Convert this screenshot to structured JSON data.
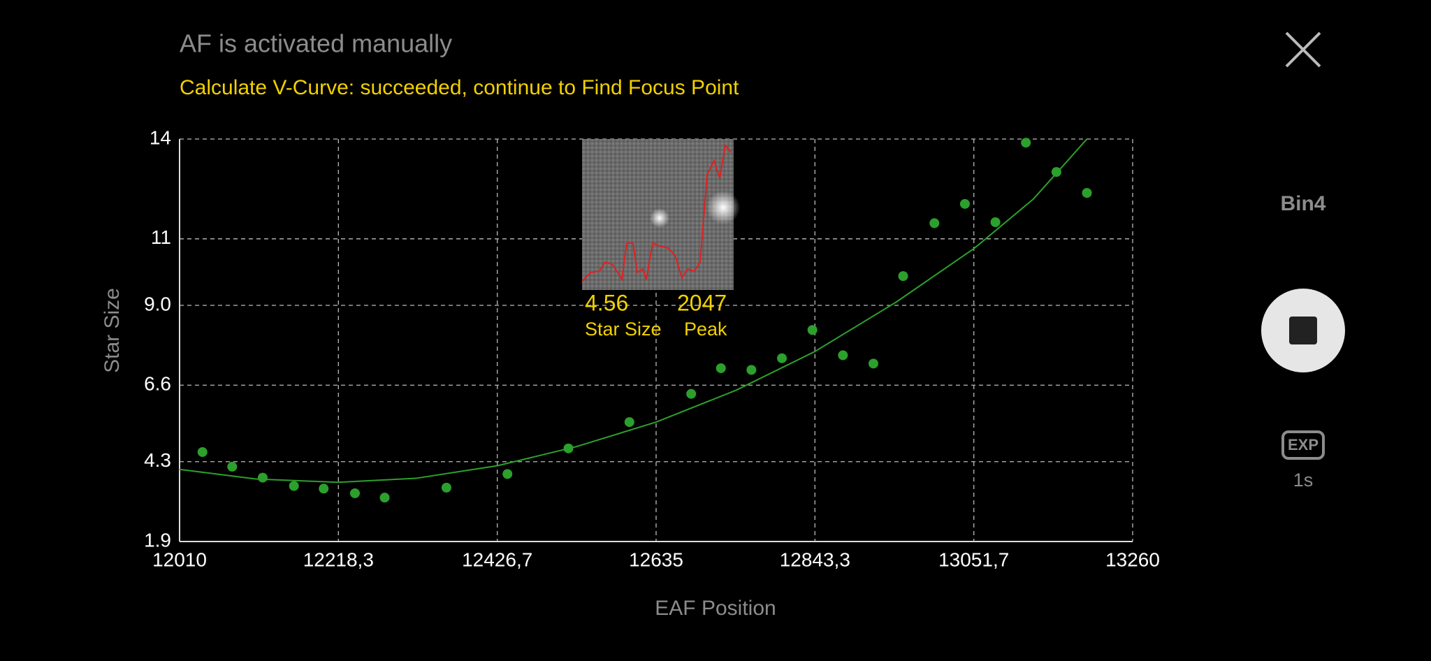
{
  "header": {
    "title": "AF is activated manually",
    "status": "Calculate V-Curve: succeeded, continue to Find Focus Point"
  },
  "chart_data": {
    "type": "scatter",
    "x_label": "EAF Position",
    "y_label": "Star Size",
    "xlim": [
      12010,
      13260
    ],
    "xticks": [
      12010,
      {
        "value": 12218.3,
        "label": "12218,3"
      },
      {
        "value": 12426.7,
        "label": "12426,7"
      },
      12635,
      {
        "value": 12843.3,
        "label": "12843,3"
      },
      {
        "value": 13051.7,
        "label": "13051,7"
      },
      13260
    ],
    "ylim": [
      1.9,
      14
    ],
    "yticks": [
      1.9,
      4.3,
      6.6,
      {
        "value": 9,
        "label": "9.0"
      },
      11,
      14
    ],
    "grid": true,
    "series": [
      {
        "style": "markers",
        "color": "#2ca02c",
        "x": [
          12040,
          12079,
          12119,
          12160,
          12199,
          12240,
          12279,
          12360,
          12440,
          12520,
          12600,
          12681,
          12720,
          12760,
          12800,
          12840,
          12880,
          12920,
          12959,
          13000,
          13040,
          13080,
          13120,
          13160,
          13200
        ],
        "values": [
          4.59,
          4.15,
          3.82,
          3.57,
          3.49,
          3.35,
          3.22,
          3.52,
          3.93,
          4.7,
          5.49,
          6.34,
          7.11,
          7.06,
          7.41,
          8.26,
          7.5,
          7.25,
          9.88,
          11.47,
          12.05,
          11.5,
          13.89,
          13.01,
          12.38
        ]
      },
      {
        "style": "line",
        "color": "#2ca02c",
        "x": [
          12010,
          12110,
          12218,
          12320,
          12427,
          12530,
          12635,
          12740,
          12843,
          12950,
          13052,
          13130,
          13200
        ],
        "values": [
          4.07,
          3.78,
          3.68,
          3.8,
          4.18,
          4.75,
          5.49,
          6.45,
          7.61,
          9.1,
          10.71,
          12.2,
          14.0
        ]
      }
    ]
  },
  "inset": {
    "star_size": "4.56",
    "star_size_label": "Star Size",
    "peak": "2047",
    "peak_label": "Peak"
  },
  "controls": {
    "binning": "Bin4",
    "exposure_icon": "EXP",
    "exposure": "1s"
  }
}
